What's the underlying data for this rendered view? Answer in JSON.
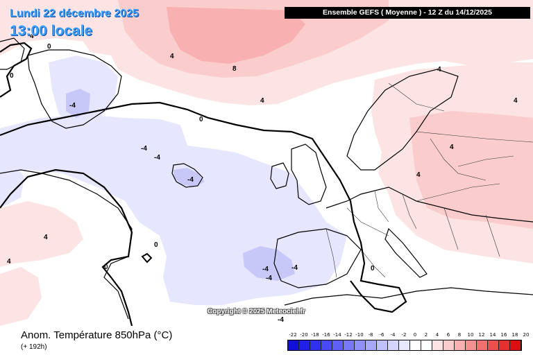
{
  "header": {
    "date": "Lundi 22 décembre 2025",
    "local_time": "13:00 locale",
    "model_run": "Ensemble GEFS  ( Moyenne )  -  12 Z du 14/12/2025"
  },
  "copyright": "Copyright © 2025 Meteociel.fr",
  "footer": {
    "title": "Anom. Température 850hPa (°C)",
    "lead_time": "(+ 192h)"
  },
  "legend": {
    "ticks": [
      "-22",
      "-20",
      "-18",
      "-16",
      "-14",
      "-12",
      "-10",
      "-8",
      "-6",
      "-4",
      "-2",
      "0",
      "2",
      "4",
      "6",
      "8",
      "10",
      "12",
      "14",
      "16",
      "18",
      "20"
    ],
    "colors": [
      "#1010d8",
      "#2020e8",
      "#3030f0",
      "#4848f4",
      "#6060f6",
      "#7878f8",
      "#9090fa",
      "#a8a8fb",
      "#c0c0fc",
      "#d4d4fd",
      "#e8e8fe",
      "#ffffff",
      "#ffffff",
      "#fde4e4",
      "#fbcccc",
      "#f8b0b0",
      "#f49090",
      "#f07070",
      "#ea5050",
      "#e43030",
      "#dc1010"
    ]
  },
  "colors": {
    "warm_light": "#fde4e4",
    "warm_mid": "#fbcccc",
    "warm_strong": "#f8b0b0",
    "cold_light": "#e6e6fe",
    "cold_mid": "#c8c8f8",
    "coast": "#000000",
    "border": "#333333",
    "date_text": "#3aa0ff"
  },
  "contour_labels": [
    {
      "id": "l0-1",
      "text": "0"
    },
    {
      "id": "l0-2",
      "text": "0"
    },
    {
      "id": "l0-3",
      "text": "0"
    },
    {
      "id": "l0-4",
      "text": "0"
    },
    {
      "id": "l0-5",
      "text": "0"
    },
    {
      "id": "l0-6",
      "text": "0"
    },
    {
      "id": "l4-1",
      "text": "4"
    },
    {
      "id": "l8-1",
      "text": "8"
    },
    {
      "id": "l4-2",
      "text": "4"
    },
    {
      "id": "l4-3",
      "text": "4"
    },
    {
      "id": "l4-4",
      "text": "4"
    },
    {
      "id": "l4-5",
      "text": "4"
    },
    {
      "id": "l4-6",
      "text": "4"
    },
    {
      "id": "lm4-1",
      "text": "-4"
    },
    {
      "id": "lm4-2",
      "text": "-4"
    },
    {
      "id": "lm4-3",
      "text": "-4"
    },
    {
      "id": "lm4-4",
      "text": "-4"
    },
    {
      "id": "lm4-5",
      "text": "-4"
    },
    {
      "id": "lm4-6",
      "text": "-4"
    },
    {
      "id": "lm4-7",
      "text": "-4"
    },
    {
      "id": "lm4-8",
      "text": "-4"
    },
    {
      "id": "l4-7",
      "text": "4"
    },
    {
      "id": "l4-8",
      "text": "4"
    },
    {
      "id": "l4-9",
      "text": "4"
    }
  ]
}
